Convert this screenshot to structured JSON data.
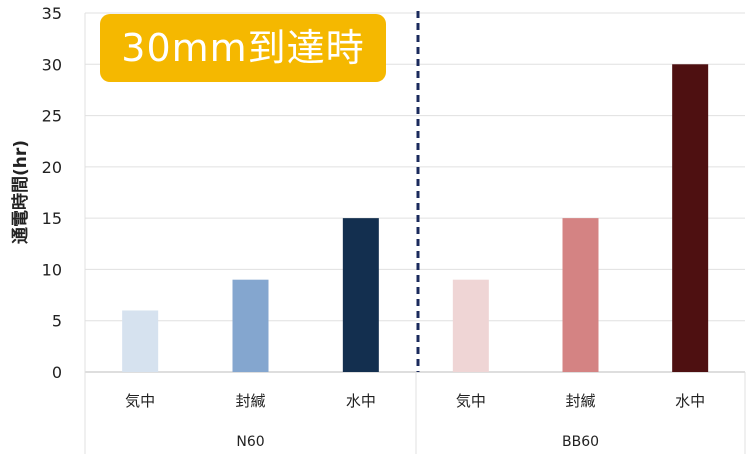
{
  "badge": "30mm到達時",
  "chart_data": {
    "type": "bar",
    "ylabel": "通電時間(hr)",
    "ylim": [
      0,
      35
    ],
    "yticks": [
      0,
      5,
      10,
      15,
      20,
      25,
      30,
      35
    ],
    "grid": true,
    "groups": [
      {
        "name": "N60",
        "categories": [
          "気中",
          "封緘",
          "水中"
        ],
        "values": [
          6,
          9,
          15
        ],
        "colors": [
          "#D6E2EF",
          "#84A6CF",
          "#132F4F"
        ]
      },
      {
        "name": "BB60",
        "categories": [
          "気中",
          "封緘",
          "水中"
        ],
        "values": [
          9,
          15,
          30
        ],
        "colors": [
          "#EFD5D5",
          "#D48383",
          "#4E1011"
        ]
      }
    ],
    "divider": {
      "style": "dashed",
      "color": "#1A2A5C"
    }
  }
}
